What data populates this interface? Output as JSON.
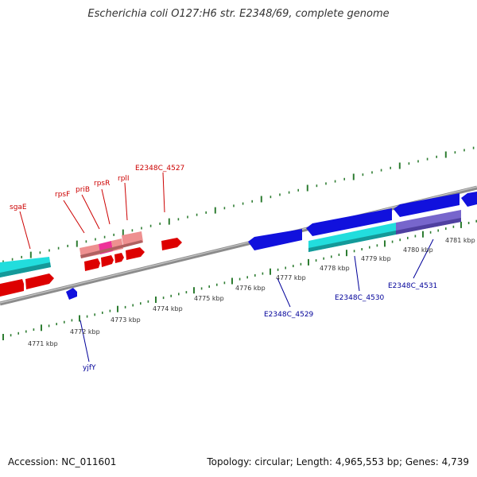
{
  "header": {
    "title": "Escherichia coli O127:H6 str. E2348/69, complete genome"
  },
  "footer": {
    "accession": "Accession: NC_011601",
    "summary": "Topology: circular; Length: 4,965,553 bp; Genes: 4,739"
  },
  "colors": {
    "forward_gene": "#dd0000",
    "forward_gene_light": "#ee9090",
    "forward_gene_pink": "#ee3399",
    "reverse_gene": "#1111dd",
    "reverse_gene_dark": "#2233cc",
    "cyan_feature": "#22dddd",
    "purple_feature": "#7766cc",
    "backbone": "#8c8c8c",
    "tick": "#2e7d32",
    "forward_label": "#cc0000",
    "reverse_label": "#000099"
  },
  "scale_labels": [
    "4771 kbp",
    "4772 kbp",
    "4773 kbp",
    "4774 kbp",
    "4775 kbp",
    "4776 kbp",
    "4777 kbp",
    "4778 kbp",
    "4779 kbp",
    "4780 kbp",
    "4781 kbp"
  ],
  "gene_labels_forward": [
    "sgaE",
    "rpsF",
    "priB",
    "rpsR",
    "rplI",
    "E2348C_4527"
  ],
  "gene_labels_reverse": [
    "yjfY",
    "E2348C_4529",
    "E2348C_4530",
    "E2348C_4531"
  ]
}
